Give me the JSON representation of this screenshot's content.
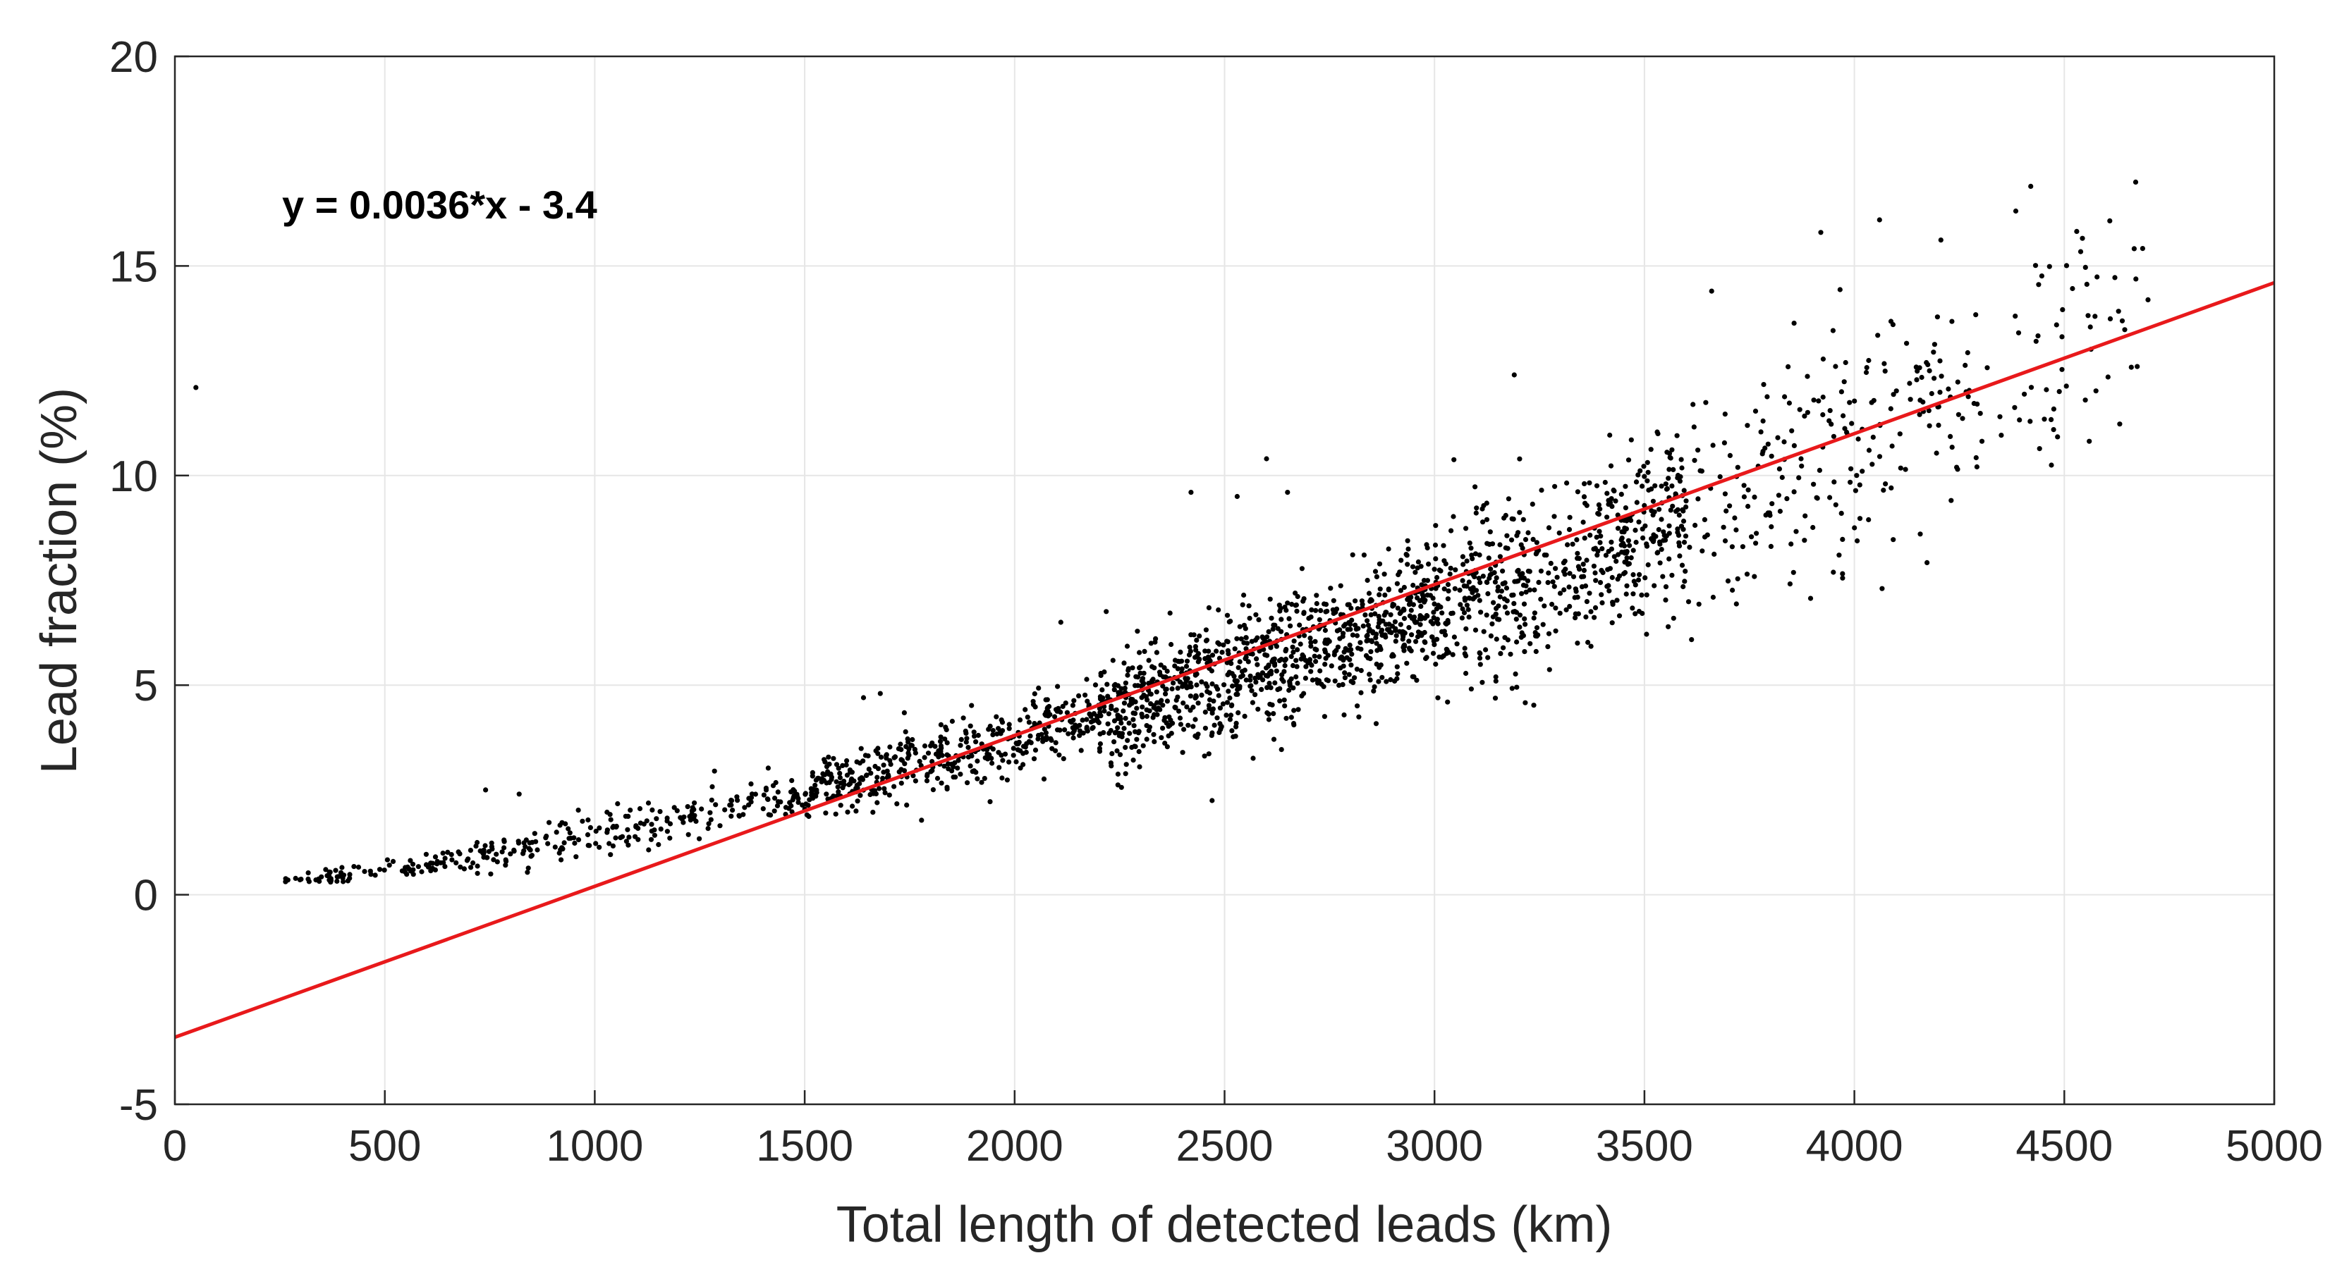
{
  "chart_data": {
    "type": "scatter",
    "title": "",
    "xlabel": "Total length of detected leads (km)",
    "ylabel": "Lead fraction (%)",
    "xlim": [
      0,
      5000
    ],
    "ylim": [
      -5,
      20
    ],
    "xticks": [
      0,
      500,
      1000,
      1500,
      2000,
      2500,
      3000,
      3500,
      4000,
      4500,
      5000
    ],
    "yticks": [
      -5,
      0,
      5,
      10,
      15,
      20
    ],
    "grid": true,
    "annotation": "y = 0.0036*x - 3.4",
    "fit_line": {
      "slope": 0.0036,
      "intercept": -3.4,
      "x_range": [
        0,
        5000
      ],
      "color": "#e8191b"
    },
    "point_color": "#000000",
    "outliers": [
      {
        "x": 50,
        "y": 12.1
      },
      {
        "x": 2420,
        "y": 9.6
      },
      {
        "x": 2530,
        "y": 9.5
      },
      {
        "x": 2600,
        "y": 10.4
      },
      {
        "x": 2650,
        "y": 9.6
      },
      {
        "x": 3190,
        "y": 12.4
      },
      {
        "x": 3920,
        "y": 15.8
      },
      {
        "x": 4060,
        "y": 16.1
      },
      {
        "x": 4420,
        "y": 16.9
      },
      {
        "x": 4670,
        "y": 17.0
      },
      {
        "x": 1680,
        "y": 4.8
      },
      {
        "x": 1640,
        "y": 4.7
      },
      {
        "x": 740,
        "y": 2.5
      },
      {
        "x": 820,
        "y": 2.4
      },
      {
        "x": 2110,
        "y": 6.5
      },
      {
        "x": 3660,
        "y": 14.4
      },
      {
        "x": 4550,
        "y": 11.8
      }
    ],
    "point_bands": [
      {
        "x_min": 260,
        "x_max": 700,
        "count": 90,
        "model": "quadratic",
        "spread": 0.12
      },
      {
        "x_min": 700,
        "x_max": 1500,
        "count": 220,
        "model": "quadratic",
        "spread": 0.25
      },
      {
        "x_min": 1500,
        "x_max": 2200,
        "count": 420,
        "model": "quadratic",
        "spread": 0.4
      },
      {
        "x_min": 2200,
        "x_max": 3000,
        "count": 900,
        "model": "quadratic",
        "spread": 0.75
      },
      {
        "x_min": 3000,
        "x_max": 3600,
        "count": 560,
        "model": "quadratic",
        "spread": 1.0
      },
      {
        "x_min": 3600,
        "x_max": 4300,
        "count": 230,
        "model": "quadratic",
        "spread": 1.4
      },
      {
        "x_min": 4300,
        "x_max": 4700,
        "count": 60,
        "model": "quadratic",
        "spread": 1.5
      }
    ],
    "trend_model": {
      "a": 4.1e-07,
      "b": 0.00105,
      "c": -0.03
    }
  }
}
